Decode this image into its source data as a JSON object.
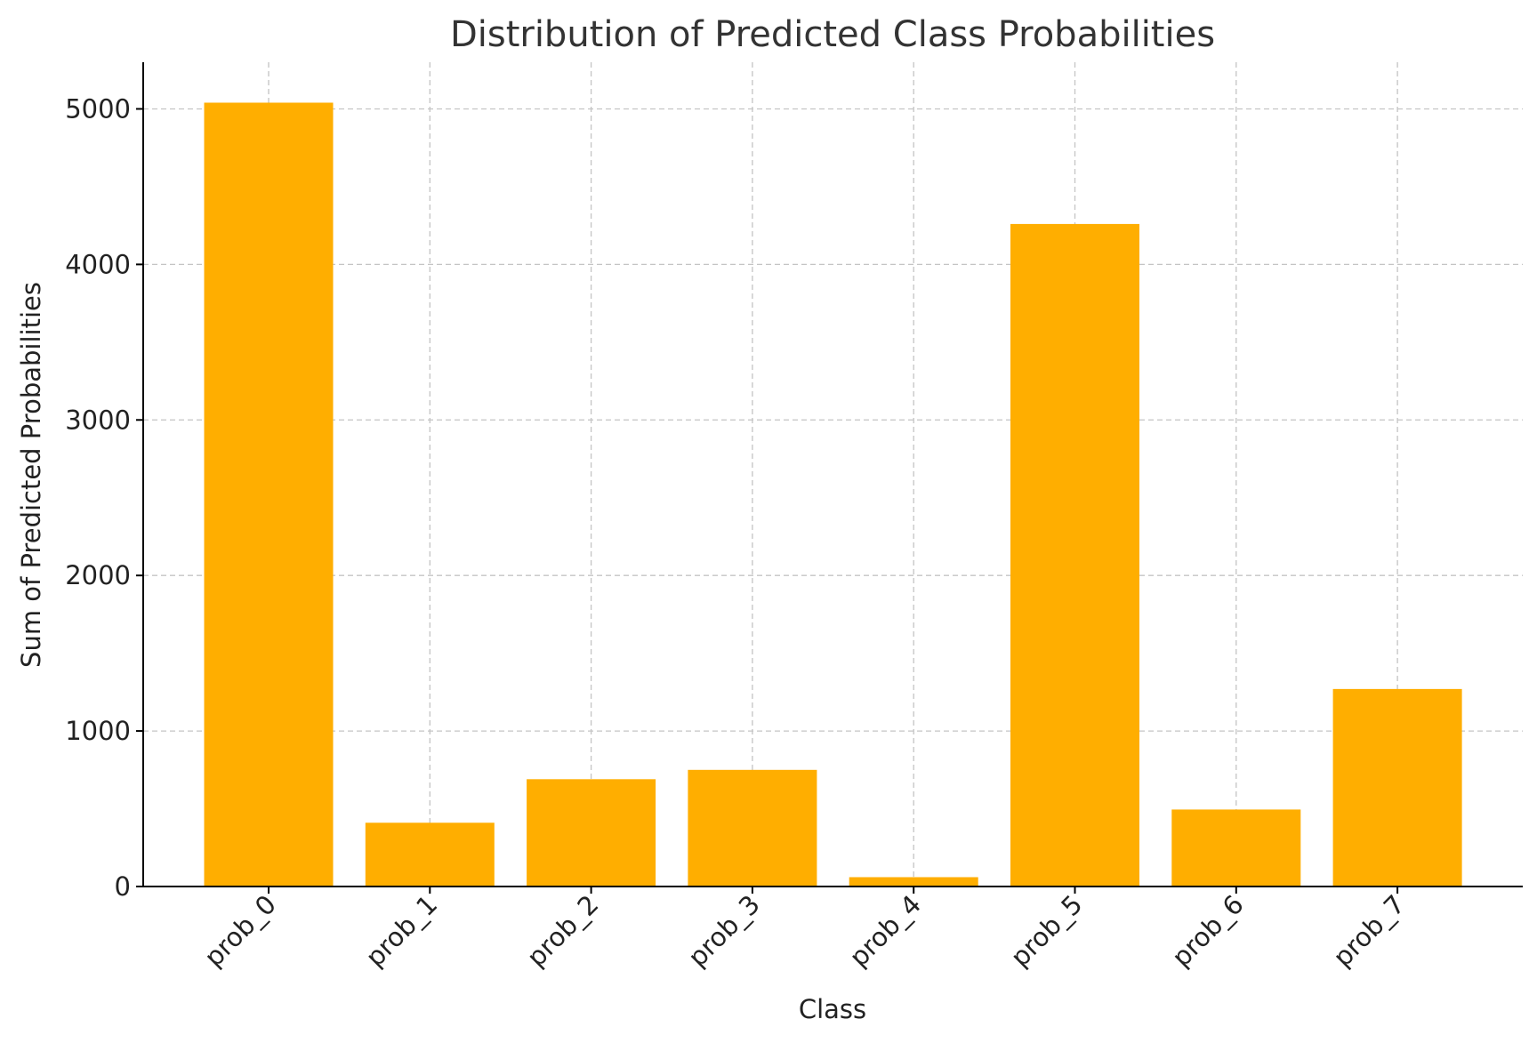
{
  "chart_data": {
    "type": "bar",
    "title": "Distribution of Predicted Class Probabilities",
    "xlabel": "Class",
    "ylabel": "Sum of Predicted Probabilities",
    "categories": [
      "prob_0",
      "prob_1",
      "prob_2",
      "prob_3",
      "prob_4",
      "prob_5",
      "prob_6",
      "prob_7"
    ],
    "values": [
      5040,
      410,
      690,
      750,
      60,
      4260,
      495,
      1270
    ],
    "ylim": [
      0,
      5300
    ],
    "yticks": [
      0,
      1000,
      2000,
      3000,
      4000,
      5000
    ],
    "grid": true,
    "bar_color": "#FFAE00",
    "x_tick_rotation": "45"
  }
}
